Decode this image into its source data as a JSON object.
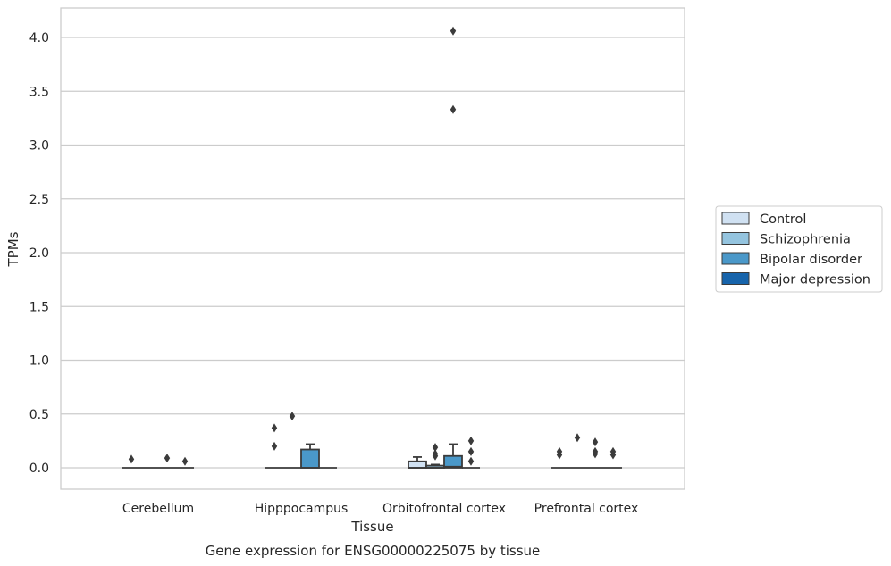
{
  "chart_data": {
    "type": "boxplot",
    "caption": "Gene expression for ENSG00000225075 by tissue",
    "xlabel": "Tissue",
    "ylabel": "TPMs",
    "ylim": [
      -0.2,
      4.27
    ],
    "yticks": [
      "0.0",
      "0.5",
      "1.0",
      "1.5",
      "2.0",
      "2.5",
      "3.0",
      "3.5",
      "4.0"
    ],
    "grid": true,
    "legend_position": "right",
    "categories": [
      "Cerebellum",
      "Hipppocampus",
      "Orbitofrontal cortex",
      "Prefrontal cortex"
    ],
    "series": [
      {
        "name": "Control",
        "color": "#d0e1f2"
      },
      {
        "name": "Schizophrenia",
        "color": "#94c4df"
      },
      {
        "name": "Bipolar disorder",
        "color": "#4a98c9"
      },
      {
        "name": "Major depression",
        "color": "#1764ab"
      }
    ],
    "boxes": [
      {
        "category": "Cerebellum",
        "series": "Control",
        "q1": 0,
        "median": 0,
        "q3": 0,
        "whisker_low": 0,
        "whisker_high": 0,
        "outliers": [
          0.08
        ]
      },
      {
        "category": "Cerebellum",
        "series": "Schizophrenia",
        "q1": 0,
        "median": 0,
        "q3": 0,
        "whisker_low": 0,
        "whisker_high": 0,
        "outliers": []
      },
      {
        "category": "Cerebellum",
        "series": "Bipolar disorder",
        "q1": 0,
        "median": 0,
        "q3": 0,
        "whisker_low": 0,
        "whisker_high": 0,
        "outliers": [
          0.09
        ]
      },
      {
        "category": "Cerebellum",
        "series": "Major depression",
        "q1": 0,
        "median": 0,
        "q3": 0,
        "whisker_low": 0,
        "whisker_high": 0,
        "outliers": [
          0.06
        ]
      },
      {
        "category": "Hipppocampus",
        "series": "Control",
        "q1": 0,
        "median": 0,
        "q3": 0,
        "whisker_low": 0,
        "whisker_high": 0,
        "outliers": [
          0.37,
          0.2
        ]
      },
      {
        "category": "Hipppocampus",
        "series": "Schizophrenia",
        "q1": 0,
        "median": 0,
        "q3": 0,
        "whisker_low": 0,
        "whisker_high": 0,
        "outliers": [
          0.48
        ]
      },
      {
        "category": "Hipppocampus",
        "series": "Bipolar disorder",
        "q1": 0,
        "median": 0,
        "q3": 0.17,
        "whisker_low": 0,
        "whisker_high": 0.22,
        "outliers": []
      },
      {
        "category": "Hipppocampus",
        "series": "Major depression",
        "q1": 0,
        "median": 0,
        "q3": 0,
        "whisker_low": 0,
        "whisker_high": 0,
        "outliers": []
      },
      {
        "category": "Orbitofrontal cortex",
        "series": "Control",
        "q1": 0,
        "median": 0,
        "q3": 0.06,
        "whisker_low": 0,
        "whisker_high": 0.1,
        "outliers": []
      },
      {
        "category": "Orbitofrontal cortex",
        "series": "Schizophrenia",
        "q1": 0,
        "median": 0,
        "q3": 0.02,
        "whisker_low": 0,
        "whisker_high": 0.03,
        "outliers": [
          0.19,
          0.13,
          0.11
        ]
      },
      {
        "category": "Orbitofrontal cortex",
        "series": "Bipolar disorder",
        "q1": 0,
        "median": 0.01,
        "q3": 0.11,
        "whisker_low": 0,
        "whisker_high": 0.22,
        "outliers": [
          4.06,
          3.33
        ]
      },
      {
        "category": "Orbitofrontal cortex",
        "series": "Major depression",
        "q1": 0,
        "median": 0,
        "q3": 0,
        "whisker_low": 0,
        "whisker_high": 0,
        "outliers": [
          0.25,
          0.15,
          0.06
        ]
      },
      {
        "category": "Prefrontal cortex",
        "series": "Control",
        "q1": 0,
        "median": 0,
        "q3": 0,
        "whisker_low": 0,
        "whisker_high": 0,
        "outliers": [
          0.15,
          0.12
        ]
      },
      {
        "category": "Prefrontal cortex",
        "series": "Schizophrenia",
        "q1": 0,
        "median": 0,
        "q3": 0,
        "whisker_low": 0,
        "whisker_high": 0,
        "outliers": [
          0.28
        ]
      },
      {
        "category": "Prefrontal cortex",
        "series": "Bipolar disorder",
        "q1": 0,
        "median": 0,
        "q3": 0,
        "whisker_low": 0,
        "whisker_high": 0,
        "outliers": [
          0.24,
          0.15,
          0.13
        ]
      },
      {
        "category": "Prefrontal cortex",
        "series": "Major depression",
        "q1": 0,
        "median": 0,
        "q3": 0,
        "whisker_low": 0,
        "whisker_high": 0,
        "outliers": [
          0.15,
          0.12
        ]
      }
    ]
  }
}
